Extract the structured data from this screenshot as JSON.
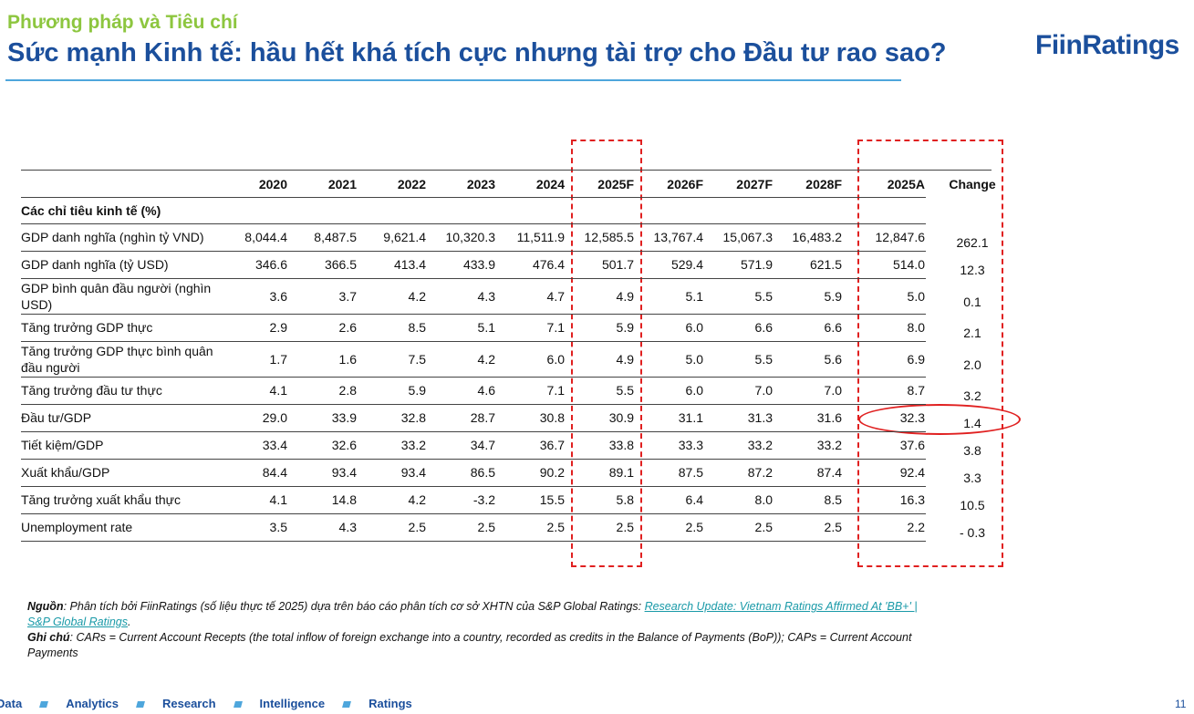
{
  "header": {
    "kicker": "Phương pháp và Tiêu chí",
    "title": "Sức mạnh Kinh tế: hầu hết khá tích cực nhưng tài trợ cho Đầu tư  rao sao?",
    "logo": "FiinRatings"
  },
  "table": {
    "columns": [
      "2020",
      "2021",
      "2022",
      "2023",
      "2024",
      "2025F",
      "2026F",
      "2027F",
      "2028F",
      "2025A",
      "Change"
    ],
    "section": "Các chỉ tiêu kinh tế (%)",
    "rows": [
      {
        "label": "GDP danh nghĩa (nghìn tỷ VND)",
        "values": [
          "8,044.4",
          "8,487.5",
          "9,621.4",
          "10,320.3",
          "11,511.9",
          "12,585.5",
          "13,767.4",
          "15,067.3",
          "16,483.2",
          "12,847.6",
          "262.1"
        ]
      },
      {
        "label": "GDP danh nghĩa (tỷ USD)",
        "values": [
          "346.6",
          "366.5",
          "413.4",
          "433.9",
          "476.4",
          "501.7",
          "529.4",
          "571.9",
          "621.5",
          "514.0",
          "12.3"
        ]
      },
      {
        "label": "GDP bình quân đầu người (nghìn USD)",
        "values": [
          "3.6",
          "3.7",
          "4.2",
          "4.3",
          "4.7",
          "4.9",
          "5.1",
          "5.5",
          "5.9",
          "5.0",
          "0.1"
        ]
      },
      {
        "label": "Tăng trưởng GDP thực",
        "values": [
          "2.9",
          "2.6",
          "8.5",
          "5.1",
          "7.1",
          "5.9",
          "6.0",
          "6.6",
          "6.6",
          "8.0",
          "2.1"
        ]
      },
      {
        "label": "Tăng trưởng GDP thực bình quân đầu người",
        "values": [
          "1.7",
          "1.6",
          "7.5",
          "4.2",
          "6.0",
          "4.9",
          "5.0",
          "5.5",
          "5.6",
          "6.9",
          "2.0"
        ]
      },
      {
        "label": "Tăng trưởng đầu tư thực",
        "values": [
          "4.1",
          "2.8",
          "5.9",
          "4.6",
          "7.1",
          "5.5",
          "6.0",
          "7.0",
          "7.0",
          "8.7",
          "3.2"
        ]
      },
      {
        "label": "Đầu tư/GDP",
        "values": [
          "29.0",
          "33.9",
          "32.8",
          "28.7",
          "30.8",
          "30.9",
          "31.1",
          "31.3",
          "31.6",
          "32.3",
          "1.4"
        ]
      },
      {
        "label": "Tiết kiệm/GDP",
        "values": [
          "33.4",
          "32.6",
          "33.2",
          "34.7",
          "36.7",
          "33.8",
          "33.3",
          "33.2",
          "33.2",
          "37.6",
          "3.8"
        ]
      },
      {
        "label": "Xuất khẩu/GDP",
        "values": [
          "84.4",
          "93.4",
          "93.4",
          "86.5",
          "90.2",
          "89.1",
          "87.5",
          "87.2",
          "87.4",
          "92.4",
          "3.3"
        ]
      },
      {
        "label": "Tăng trưởng xuất khẩu thực",
        "values": [
          "4.1",
          "14.8",
          "4.2",
          "-3.2",
          "15.5",
          "5.8",
          "6.4",
          "8.0",
          "8.5",
          "16.3",
          "10.5"
        ]
      },
      {
        "label": "Unemployment rate",
        "values": [
          "3.5",
          "4.3",
          "2.5",
          "2.5",
          "2.5",
          "2.5",
          "2.5",
          "2.5",
          "2.5",
          "2.2",
          "- 0.3"
        ]
      }
    ]
  },
  "notes": {
    "source_label": "Nguồn",
    "source_text": ": Phân tích bởi FiinRatings (số liệu thực tế 2025) dựa trên báo cáo phân tích cơ sở XHTN của S&P Global Ratings: ",
    "source_link": "Research Update: Vietnam Ratings Affirmed At 'BB+' | S&P Global Ratings",
    "note_label": "Ghi chú",
    "note_text": ": CARs = Current Account Recepts (the total inflow of foreign exchange into a country, recorded as credits in the Balance of Payments (BoP)); CAPs = Current Account Payments"
  },
  "footer": {
    "items": [
      "Data",
      "Analytics",
      "Research",
      "Intelligence",
      "Ratings"
    ],
    "page": "11"
  }
}
